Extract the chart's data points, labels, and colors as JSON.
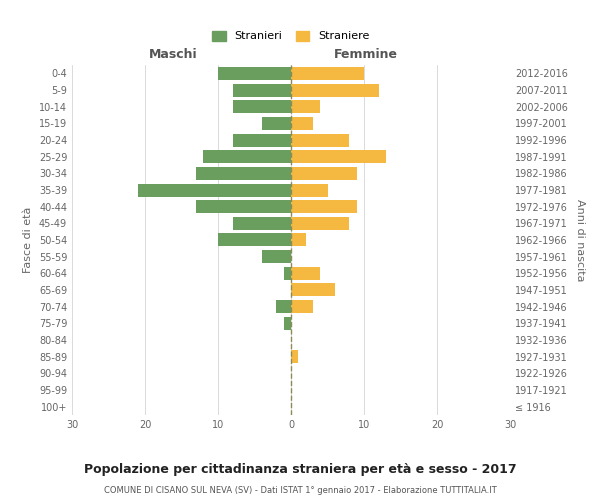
{
  "age_groups": [
    "0-4",
    "5-9",
    "10-14",
    "15-19",
    "20-24",
    "25-29",
    "30-34",
    "35-39",
    "40-44",
    "45-49",
    "50-54",
    "55-59",
    "60-64",
    "65-69",
    "70-74",
    "75-79",
    "80-84",
    "85-89",
    "90-94",
    "95-99",
    "100+"
  ],
  "birth_years": [
    "2012-2016",
    "2007-2011",
    "2002-2006",
    "1997-2001",
    "1992-1996",
    "1987-1991",
    "1982-1986",
    "1977-1981",
    "1972-1976",
    "1967-1971",
    "1962-1966",
    "1957-1961",
    "1952-1956",
    "1947-1951",
    "1942-1946",
    "1937-1941",
    "1932-1936",
    "1927-1931",
    "1922-1926",
    "1917-1921",
    "≤ 1916"
  ],
  "maschi": [
    10,
    8,
    8,
    4,
    8,
    12,
    13,
    21,
    13,
    8,
    10,
    4,
    1,
    0,
    2,
    1,
    0,
    0,
    0,
    0,
    0
  ],
  "femmine": [
    10,
    12,
    4,
    3,
    8,
    13,
    9,
    5,
    9,
    8,
    2,
    0,
    4,
    6,
    3,
    0,
    0,
    1,
    0,
    0,
    0
  ],
  "color_maschi": "#6a9e5e",
  "color_femmine": "#f5b942",
  "title": "Popolazione per cittadinanza straniera per età e sesso - 2017",
  "subtitle": "COMUNE DI CISANO SUL NEVA (SV) - Dati ISTAT 1° gennaio 2017 - Elaborazione TUTTITALIA.IT",
  "ylabel_left": "Fasce di età",
  "ylabel_right": "Anni di nascita",
  "xlabel_left": "Maschi",
  "xlabel_right": "Femmine",
  "legend_maschi": "Stranieri",
  "legend_femmine": "Straniere",
  "xlim": 30,
  "background_color": "#ffffff",
  "grid_color": "#cccccc",
  "dashed_line_color": "#8b8b5a"
}
